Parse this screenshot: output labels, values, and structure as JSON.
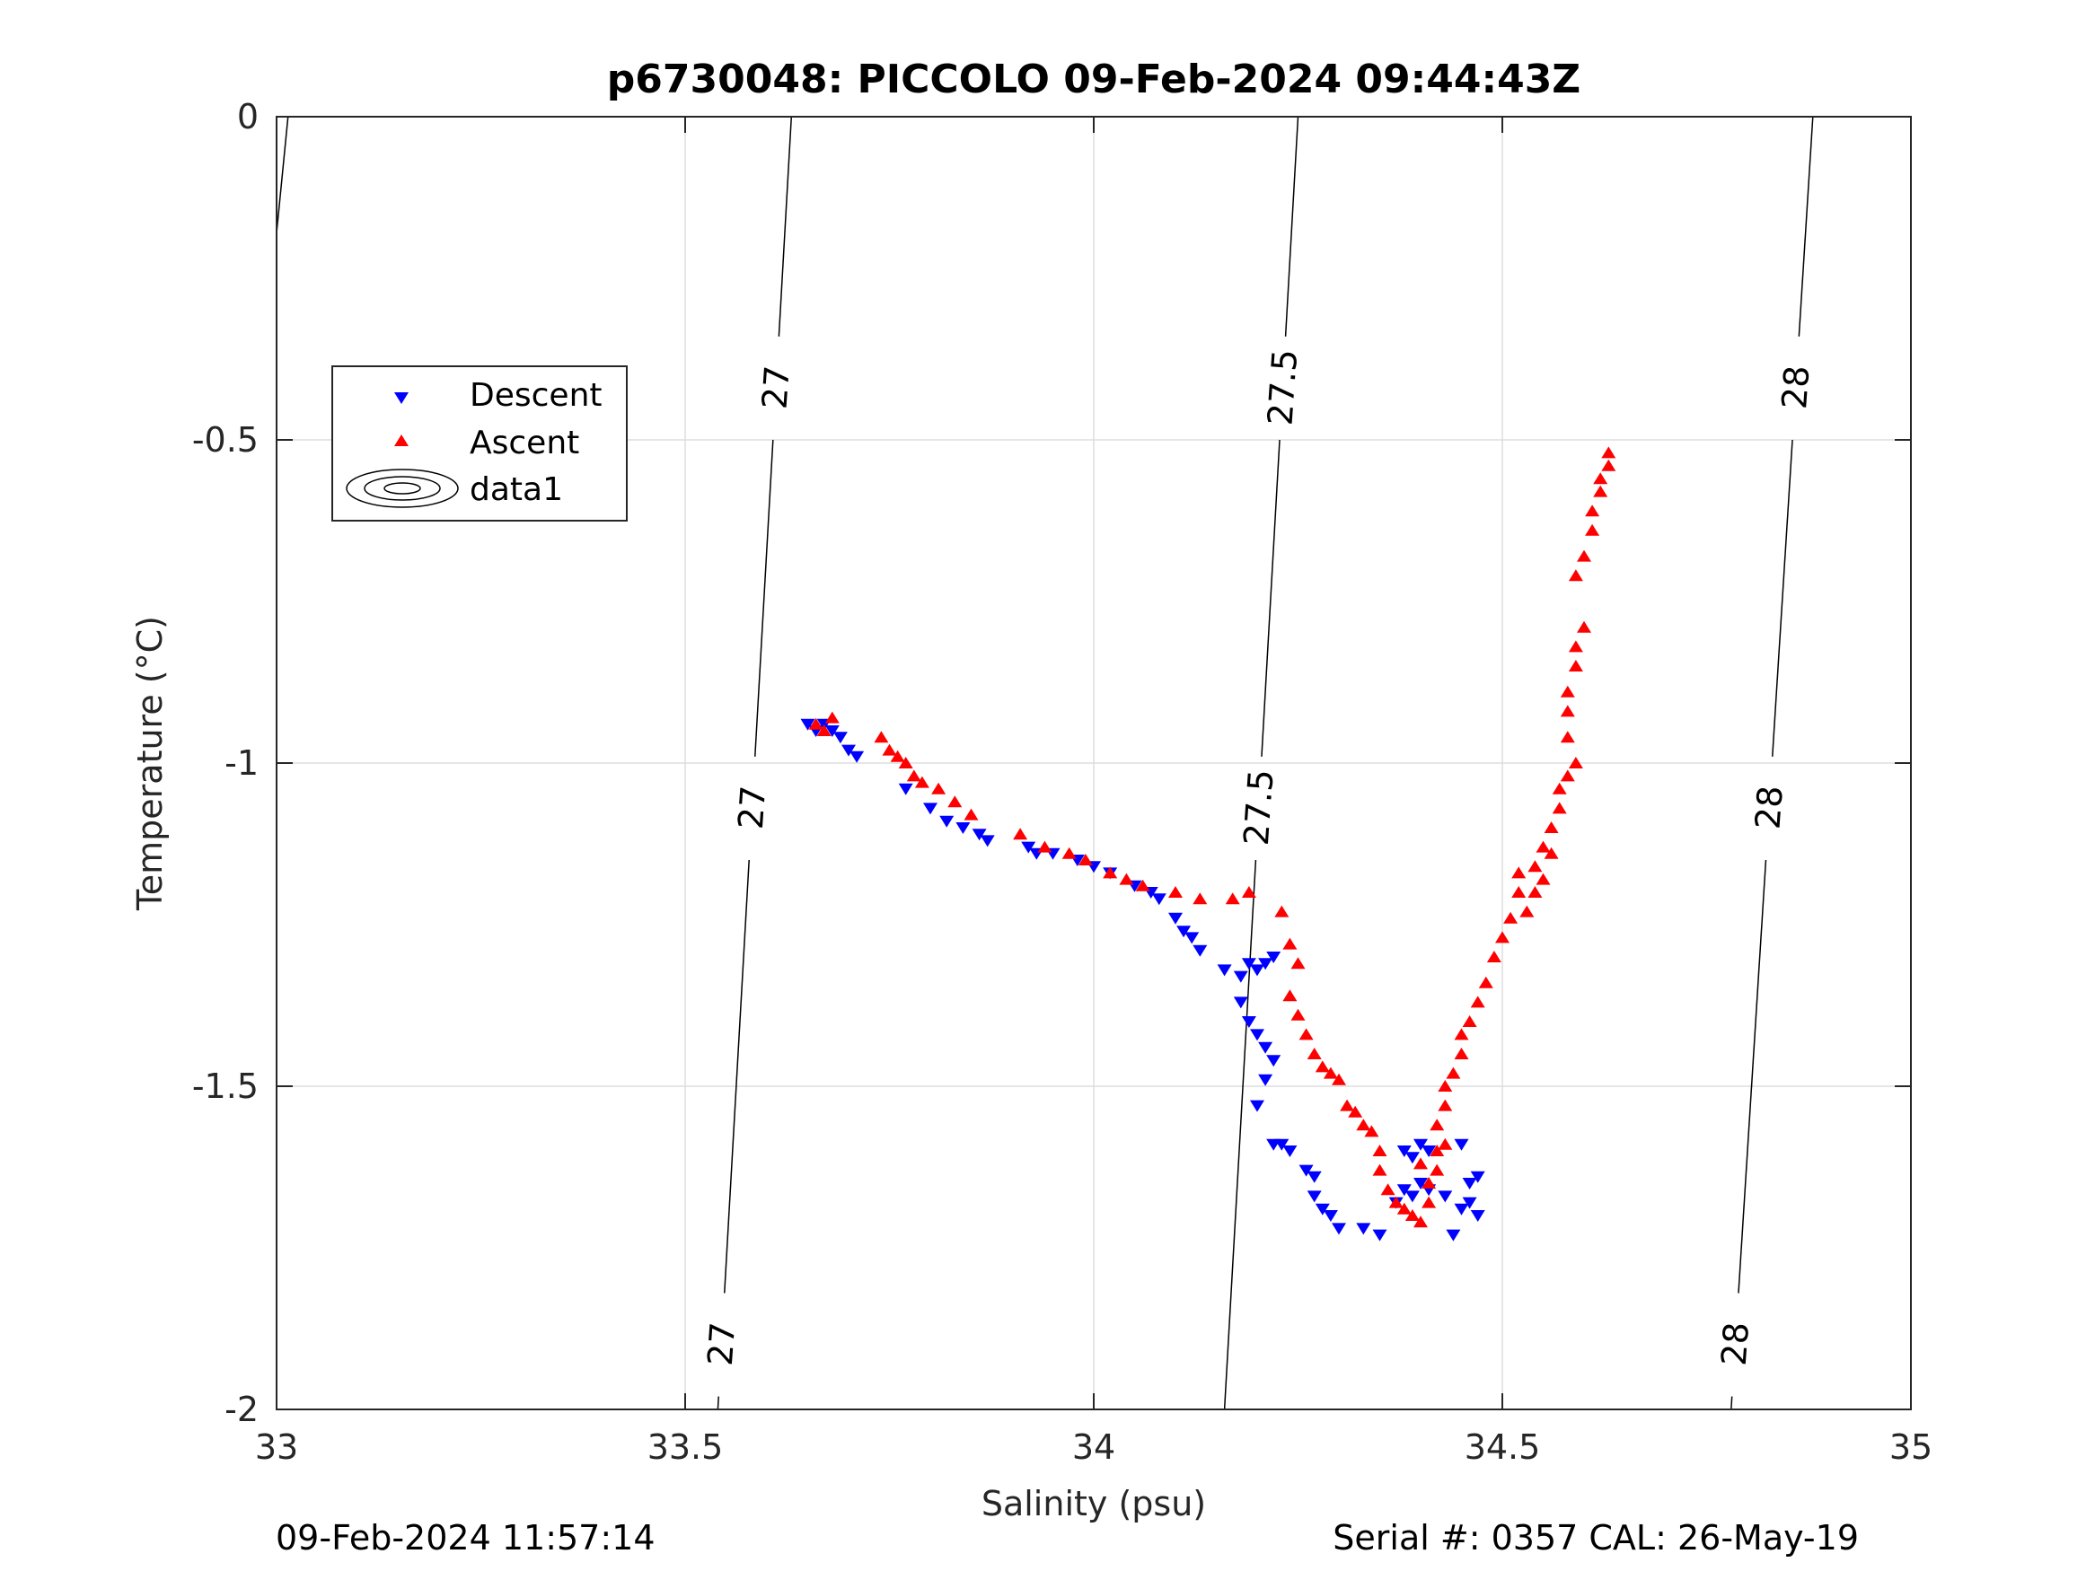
{
  "chart_data": {
    "type": "scatter",
    "title": "p6730048: PICCOLO 09-Feb-2024 09:44:43Z",
    "xlabel": "Salinity (psu)",
    "ylabel": "Temperature (°C)",
    "xlim": [
      33,
      35
    ],
    "ylim": [
      -2,
      0
    ],
    "xticks": [
      "33",
      "33.5",
      "34",
      "34.5",
      "35"
    ],
    "yticks": [
      "0",
      "-0.5",
      "-1",
      "-1.5",
      "-2"
    ],
    "grid": true,
    "legend_position": "upper-left",
    "legend": [
      "Descent",
      "Ascent",
      "data1"
    ],
    "footer_left": "09-Feb-2024 11:57:14",
    "footer_right": "Serial #: 0357  CAL: 26-May-19",
    "contours": [
      {
        "level": "27",
        "labels": [
          "27",
          "27",
          "27"
        ]
      },
      {
        "level": "27.5",
        "labels": [
          "27.5",
          "27.5"
        ]
      },
      {
        "level": "28",
        "labels": [
          "28",
          "28",
          "28"
        ]
      }
    ],
    "series": [
      {
        "name": "Descent",
        "color": "#0000ff",
        "marker": "triangle-down",
        "points": [
          [
            33.65,
            -0.94
          ],
          [
            33.66,
            -0.95
          ],
          [
            33.67,
            -0.94
          ],
          [
            33.68,
            -0.95
          ],
          [
            33.69,
            -0.96
          ],
          [
            33.7,
            -0.98
          ],
          [
            33.71,
            -0.99
          ],
          [
            33.77,
            -1.04
          ],
          [
            33.8,
            -1.07
          ],
          [
            33.82,
            -1.09
          ],
          [
            33.84,
            -1.1
          ],
          [
            33.86,
            -1.11
          ],
          [
            33.87,
            -1.12
          ],
          [
            33.92,
            -1.13
          ],
          [
            33.93,
            -1.14
          ],
          [
            33.95,
            -1.14
          ],
          [
            33.98,
            -1.15
          ],
          [
            34.0,
            -1.16
          ],
          [
            34.02,
            -1.17
          ],
          [
            34.05,
            -1.19
          ],
          [
            34.07,
            -1.2
          ],
          [
            34.08,
            -1.21
          ],
          [
            34.1,
            -1.24
          ],
          [
            34.11,
            -1.26
          ],
          [
            34.12,
            -1.27
          ],
          [
            34.13,
            -1.29
          ],
          [
            34.16,
            -1.32
          ],
          [
            34.18,
            -1.33
          ],
          [
            34.19,
            -1.31
          ],
          [
            34.2,
            -1.32
          ],
          [
            34.21,
            -1.31
          ],
          [
            34.22,
            -1.3
          ],
          [
            34.18,
            -1.37
          ],
          [
            34.19,
            -1.4
          ],
          [
            34.2,
            -1.42
          ],
          [
            34.21,
            -1.44
          ],
          [
            34.22,
            -1.46
          ],
          [
            34.21,
            -1.49
          ],
          [
            34.2,
            -1.53
          ],
          [
            34.22,
            -1.59
          ],
          [
            34.23,
            -1.59
          ],
          [
            34.24,
            -1.6
          ],
          [
            34.26,
            -1.63
          ],
          [
            34.27,
            -1.64
          ],
          [
            34.27,
            -1.67
          ],
          [
            34.28,
            -1.69
          ],
          [
            34.29,
            -1.7
          ],
          [
            34.3,
            -1.72
          ],
          [
            34.33,
            -1.72
          ],
          [
            34.35,
            -1.73
          ],
          [
            34.37,
            -1.68
          ],
          [
            34.38,
            -1.66
          ],
          [
            34.39,
            -1.67
          ],
          [
            34.4,
            -1.65
          ],
          [
            34.41,
            -1.66
          ],
          [
            34.43,
            -1.67
          ],
          [
            34.44,
            -1.73
          ],
          [
            34.45,
            -1.69
          ],
          [
            34.46,
            -1.65
          ],
          [
            34.47,
            -1.64
          ],
          [
            34.47,
            -1.7
          ],
          [
            34.46,
            -1.68
          ],
          [
            34.38,
            -1.6
          ],
          [
            34.39,
            -1.61
          ],
          [
            34.4,
            -1.59
          ],
          [
            34.41,
            -1.6
          ],
          [
            34.45,
            -1.59
          ]
        ]
      },
      {
        "name": "Ascent",
        "color": "#ff0000",
        "marker": "triangle-up",
        "points": [
          [
            33.66,
            -0.94
          ],
          [
            33.67,
            -0.95
          ],
          [
            33.68,
            -0.93
          ],
          [
            33.74,
            -0.96
          ],
          [
            33.75,
            -0.98
          ],
          [
            33.76,
            -0.99
          ],
          [
            33.77,
            -1.0
          ],
          [
            33.78,
            -1.02
          ],
          [
            33.79,
            -1.03
          ],
          [
            33.81,
            -1.04
          ],
          [
            33.83,
            -1.06
          ],
          [
            33.85,
            -1.08
          ],
          [
            33.91,
            -1.11
          ],
          [
            33.94,
            -1.13
          ],
          [
            33.97,
            -1.14
          ],
          [
            33.99,
            -1.15
          ],
          [
            34.02,
            -1.17
          ],
          [
            34.04,
            -1.18
          ],
          [
            34.06,
            -1.19
          ],
          [
            34.1,
            -1.2
          ],
          [
            34.13,
            -1.21
          ],
          [
            34.17,
            -1.21
          ],
          [
            34.19,
            -1.2
          ],
          [
            34.23,
            -1.23
          ],
          [
            34.24,
            -1.28
          ],
          [
            34.25,
            -1.31
          ],
          [
            34.24,
            -1.36
          ],
          [
            34.25,
            -1.39
          ],
          [
            34.26,
            -1.42
          ],
          [
            34.27,
            -1.45
          ],
          [
            34.28,
            -1.47
          ],
          [
            34.29,
            -1.48
          ],
          [
            34.3,
            -1.49
          ],
          [
            34.31,
            -1.53
          ],
          [
            34.32,
            -1.54
          ],
          [
            34.33,
            -1.56
          ],
          [
            34.34,
            -1.57
          ],
          [
            34.35,
            -1.6
          ],
          [
            34.35,
            -1.63
          ],
          [
            34.36,
            -1.66
          ],
          [
            34.37,
            -1.68
          ],
          [
            34.38,
            -1.69
          ],
          [
            34.39,
            -1.7
          ],
          [
            34.4,
            -1.71
          ],
          [
            34.41,
            -1.68
          ],
          [
            34.41,
            -1.65
          ],
          [
            34.42,
            -1.63
          ],
          [
            34.4,
            -1.62
          ],
          [
            34.42,
            -1.6
          ],
          [
            34.43,
            -1.59
          ],
          [
            34.42,
            -1.56
          ],
          [
            34.43,
            -1.53
          ],
          [
            34.43,
            -1.5
          ],
          [
            34.44,
            -1.48
          ],
          [
            34.45,
            -1.45
          ],
          [
            34.45,
            -1.42
          ],
          [
            34.46,
            -1.4
          ],
          [
            34.47,
            -1.37
          ],
          [
            34.48,
            -1.34
          ],
          [
            34.49,
            -1.3
          ],
          [
            34.5,
            -1.27
          ],
          [
            34.51,
            -1.24
          ],
          [
            34.52,
            -1.2
          ],
          [
            34.52,
            -1.17
          ],
          [
            34.53,
            -1.23
          ],
          [
            34.54,
            -1.2
          ],
          [
            34.54,
            -1.16
          ],
          [
            34.55,
            -1.13
          ],
          [
            34.55,
            -1.18
          ],
          [
            34.56,
            -1.14
          ],
          [
            34.56,
            -1.1
          ],
          [
            34.57,
            -1.07
          ],
          [
            34.57,
            -1.04
          ],
          [
            34.58,
            -1.02
          ],
          [
            34.59,
            -1.0
          ],
          [
            34.58,
            -0.96
          ],
          [
            34.58,
            -0.92
          ],
          [
            34.58,
            -0.89
          ],
          [
            34.59,
            -0.85
          ],
          [
            34.59,
            -0.82
          ],
          [
            34.6,
            -0.79
          ],
          [
            34.59,
            -0.71
          ],
          [
            34.6,
            -0.68
          ],
          [
            34.61,
            -0.64
          ],
          [
            34.61,
            -0.61
          ],
          [
            34.62,
            -0.58
          ],
          [
            34.62,
            -0.56
          ],
          [
            34.63,
            -0.54
          ],
          [
            34.63,
            -0.52
          ]
        ]
      }
    ]
  }
}
